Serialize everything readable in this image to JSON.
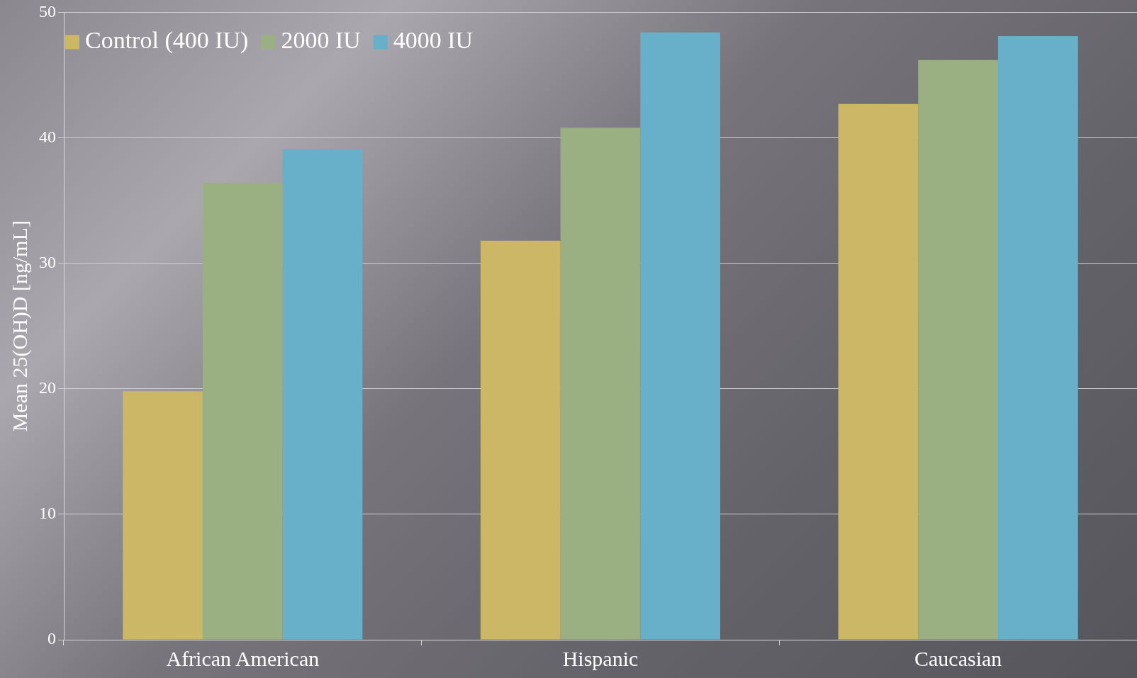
{
  "chart_data": {
    "type": "bar",
    "ylabel": "Mean 25(OH)D [ng/mL]",
    "categories": [
      "African American",
      "Hispanic",
      "Caucasian"
    ],
    "series": [
      {
        "name": "Control (400 IU)",
        "color": "#ccb766",
        "values": [
          19.8,
          31.8,
          42.7
        ]
      },
      {
        "name": "2000 IU",
        "color": "#9bb082",
        "values": [
          36.4,
          40.8,
          46.2
        ]
      },
      {
        "name": "4000 IU",
        "color": "#68afca",
        "values": [
          39.1,
          48.4,
          48.1
        ]
      }
    ],
    "ylim": [
      0,
      50
    ],
    "yticks": [
      0,
      10,
      20,
      30,
      40,
      50
    ],
    "grid": "y",
    "legend": "top left"
  }
}
